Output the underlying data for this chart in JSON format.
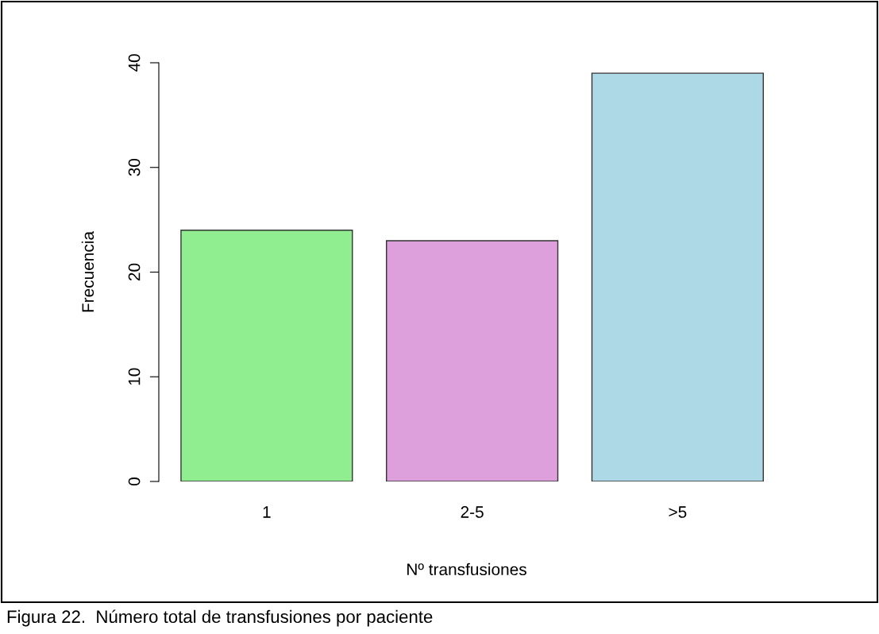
{
  "chart_data": {
    "type": "bar",
    "categories": [
      "1",
      "2-5",
      ">5"
    ],
    "values": [
      24,
      23,
      39
    ],
    "colors": [
      "#90ee90",
      "#dda0dd",
      "#add8e6"
    ],
    "xlabel": "Nº transfusiones",
    "ylabel": "Frecuencia",
    "ylim": [
      0,
      40
    ],
    "yticks": [
      0,
      10,
      20,
      30,
      40
    ],
    "grid": false,
    "legend": false,
    "annotations": [
      "Figura 22.  Número total de transfusiones por paciente"
    ]
  }
}
